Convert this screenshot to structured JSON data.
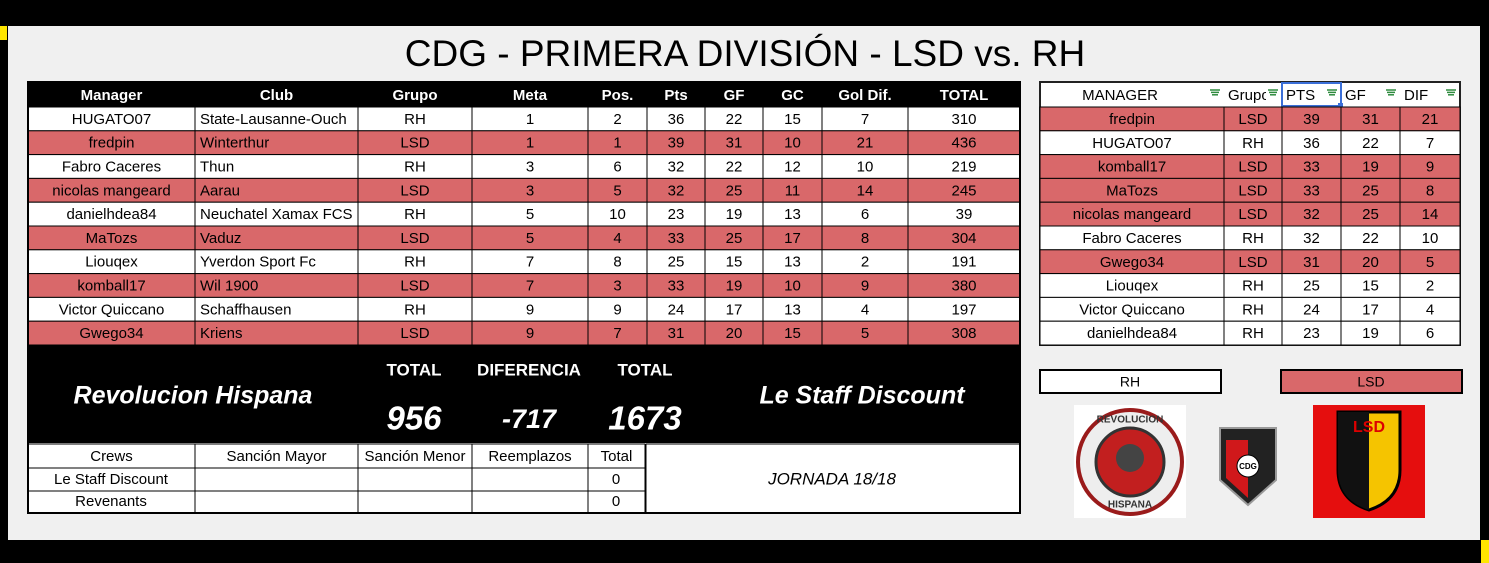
{
  "header": {
    "title": "CDG - PRIMERA DIVISIÓN - LSD vs. RH"
  },
  "standings": {
    "columns": [
      "Manager",
      "Club",
      "Grupo",
      "Meta",
      "Pos.",
      "Pts",
      "GF",
      "GC",
      "Gol Dif.",
      "TOTAL"
    ],
    "rows": [
      [
        "HUGATO07",
        "State-Lausanne-Ouch",
        "RH",
        1,
        2,
        36,
        22,
        15,
        7,
        310
      ],
      [
        "fredpin",
        "Winterthur",
        "LSD",
        1,
        1,
        39,
        31,
        10,
        21,
        436
      ],
      [
        "Fabro Caceres",
        "Thun",
        "RH",
        3,
        6,
        32,
        22,
        12,
        10,
        219
      ],
      [
        "nicolas mangeard",
        "Aarau",
        "LSD",
        3,
        5,
        32,
        25,
        11,
        14,
        245
      ],
      [
        "danielhdea84",
        "Neuchatel Xamax FCS",
        "RH",
        5,
        10,
        23,
        19,
        13,
        6,
        39
      ],
      [
        "MaTozs",
        "Vaduz",
        "LSD",
        5,
        4,
        33,
        25,
        17,
        8,
        304
      ],
      [
        "Liouqex",
        "Yverdon Sport Fc",
        "RH",
        7,
        8,
        25,
        15,
        13,
        2,
        191
      ],
      [
        "komball17",
        "Wil 1900",
        "LSD",
        7,
        3,
        33,
        19,
        10,
        9,
        380
      ],
      [
        "Victor Quiccano",
        "Schaffhausen",
        "RH",
        9,
        9,
        24,
        17,
        13,
        4,
        197
      ],
      [
        "Gwego34",
        "Kriens",
        "LSD",
        9,
        7,
        31,
        20,
        15,
        5,
        308
      ]
    ]
  },
  "summary": {
    "team_left": "Revolucion Hispana",
    "team_right": "Le Staff Discount",
    "total_left_label": "TOTAL",
    "difference_label": "DIFERENCIA",
    "total_right_label": "TOTAL",
    "total_left": 956,
    "difference": -717,
    "total_right": 1673
  },
  "crews": {
    "columns": [
      "Crews",
      "Sanción Mayor",
      "Sanción Menor",
      "Reemplazos",
      "Total"
    ],
    "rows": [
      [
        "Le Staff Discount",
        0
      ],
      [
        "Revenants",
        0
      ]
    ]
  },
  "jornada": "JORNADA 18/18",
  "ranking": {
    "columns": [
      "MANAGER",
      "Grupo",
      "PTS",
      "GF",
      "DIF"
    ],
    "rows": [
      [
        "fredpin",
        "LSD",
        39,
        31,
        21
      ],
      [
        "HUGATO07",
        "RH",
        36,
        22,
        7
      ],
      [
        "komball17",
        "LSD",
        33,
        19,
        9
      ],
      [
        "MaTozs",
        "LSD",
        33,
        25,
        8
      ],
      [
        "nicolas mangeard",
        "LSD",
        32,
        25,
        14
      ],
      [
        "Fabro Caceres",
        "RH",
        32,
        22,
        10
      ],
      [
        "Gwego34",
        "LSD",
        31,
        20,
        5
      ],
      [
        "Liouqex",
        "RH",
        25,
        15,
        2
      ],
      [
        "Victor Quiccano",
        "RH",
        24,
        17,
        4
      ],
      [
        "danielhdea84",
        "RH",
        23,
        19,
        6
      ]
    ]
  },
  "legend": [
    "RH",
    "LSD"
  ],
  "logos": {
    "rh": [
      "REVOLUCION",
      "HISPANA"
    ],
    "cdg": "CDG",
    "lsd": "LSD"
  }
}
